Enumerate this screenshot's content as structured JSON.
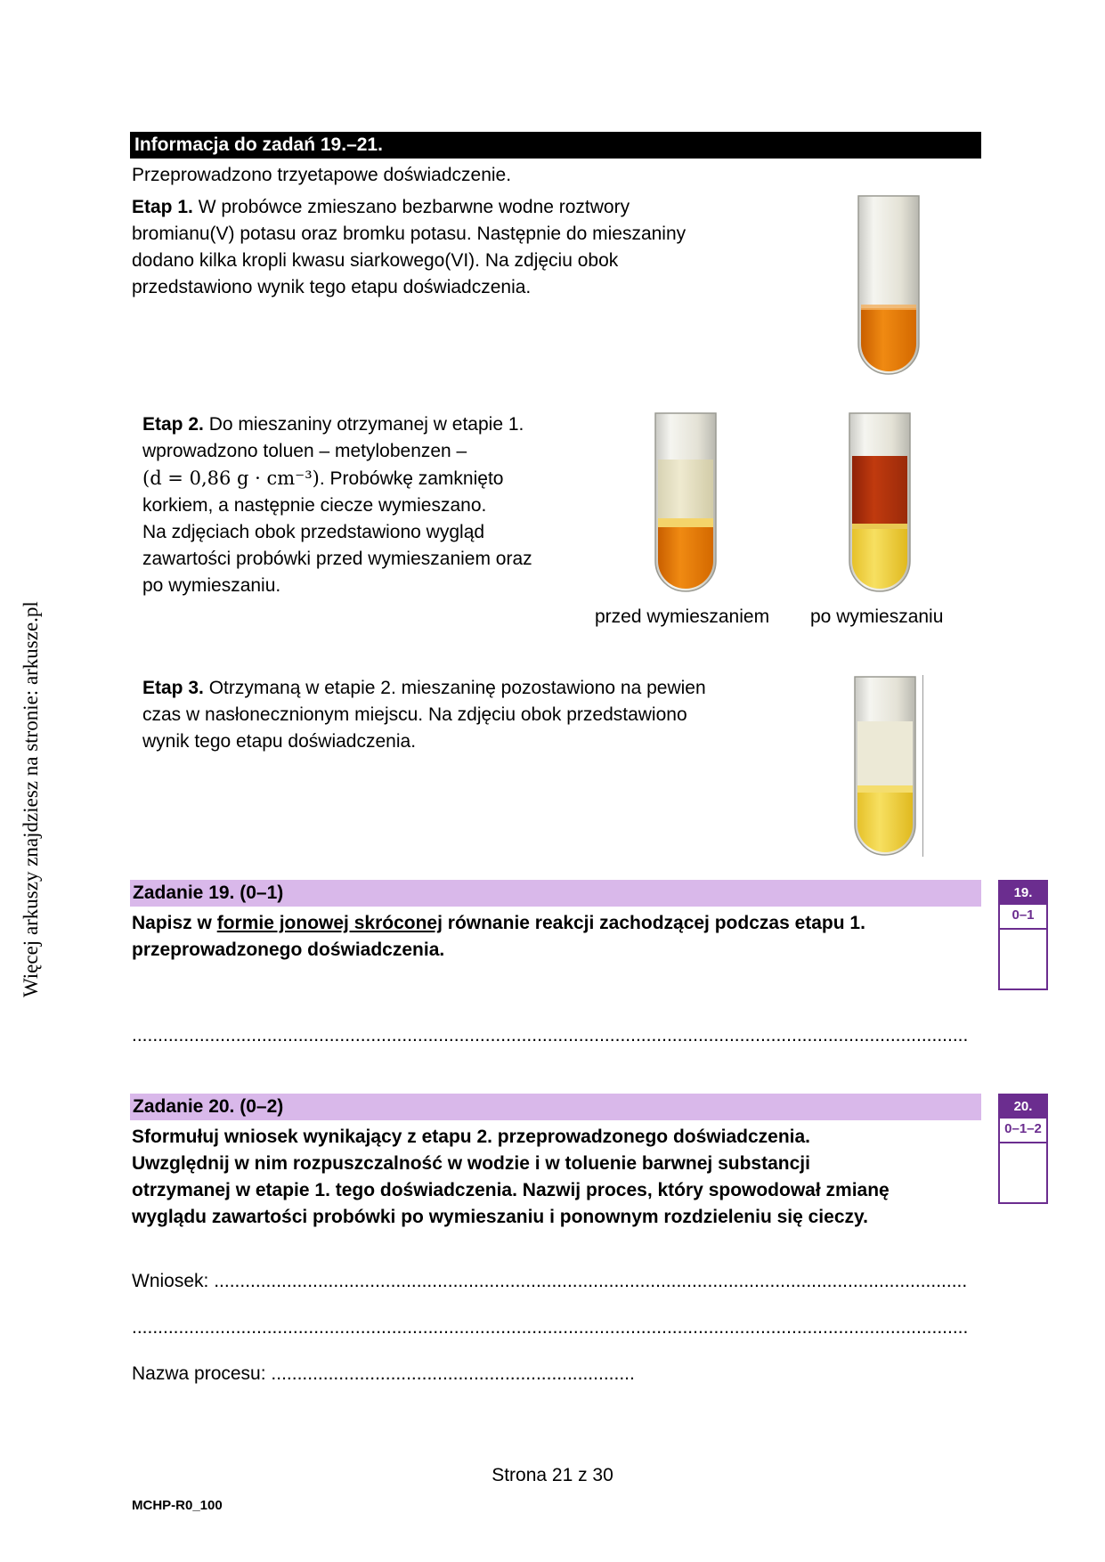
{
  "side_text": "Więcej arkuszy znajdziesz na stronie: arkusze.pl",
  "info_header": "Informacja do zadań 19.–21.",
  "intro": "Przeprowadzono trzyetapowe doświadczenie.",
  "stage1": {
    "label": "Etap 1.",
    "lines": [
      " W probówce zmieszano bezbarwne wodne roztwory",
      "bromianu(V) potasu oraz bromku potasu. Następnie do mieszaniny",
      "dodano kilka kropli kwasu siarkowego(VI). Na zdjęciu obok",
      "przedstawiono wynik tego etapu doświadczenia."
    ]
  },
  "stage2": {
    "label": "Etap 2.",
    "line1": " Do mieszaniny otrzymanej w etapie 1.",
    "line2": "wprowadzono toluen – metylobenzen –",
    "formula": "(d = 0,86 g · cm⁻³)",
    "line3_rest": ". Probówkę zamknięto",
    "lines_after": [
      "korkiem, a następnie ciecze wymieszano.",
      "Na zdjęciach obok przedstawiono wygląd",
      "zawartości probówki przed wymieszaniem oraz",
      "po wymieszaniu."
    ],
    "caption_before": "przed wymieszaniem",
    "caption_after": "po wymieszaniu"
  },
  "stage3": {
    "label": "Etap 3.",
    "lines": [
      " Otrzymaną w etapie 2. mieszaninę pozostawiono na pewien",
      "czas w nasłonecznionym miejscu. Na zdjęciu obok przedstawiono",
      "wynik tego etapu doświadczenia."
    ]
  },
  "task19": {
    "title": "Zadanie 19. (0–1)",
    "text_a": "Napisz w ",
    "text_u": "formie jonowej skróconej",
    "text_b": " równanie reakcji zachodzącej podczas etapu 1.",
    "text_c": "przeprowadzonego doświadczenia.",
    "score_num": "19.",
    "score_pts": "0–1"
  },
  "task20": {
    "title": "Zadanie 20. (0–2)",
    "lines": [
      "Sformułuj wniosek wynikający z etapu 2. przeprowadzonego doświadczenia.",
      "Uwzględnij w nim rozpuszczalność w wodzie i w toluenie barwnej substancji",
      "otrzymanej w etapie 1. tego doświadczenia. Nazwij proces, który spowodował zmianę",
      "wyglądu zawartości probówki po wymieszaniu i ponownym rozdzieleniu się cieczy."
    ],
    "conclusion_label": "Wniosek: ",
    "process_label": "Nazwa procesu: ",
    "score_num": "20.",
    "score_pts": "0–1–2"
  },
  "footer": {
    "page": "Strona 21 z 30",
    "code": "MCHP-R0_100"
  },
  "colors": {
    "task_bar": "#d9b8ea",
    "score_purple": "#6b2d8f",
    "orange": "#e97f06",
    "red_brown": "#b5300a",
    "yellow": "#f2d43a"
  }
}
